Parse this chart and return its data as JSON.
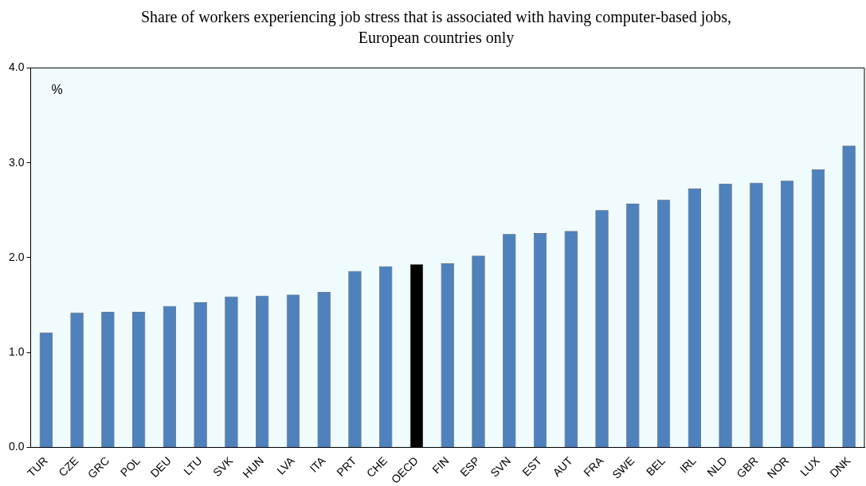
{
  "chart_data": {
    "type": "bar",
    "title": "Share of workers experiencing job stress that is associated with having computer-based jobs, European countries only",
    "categories": [
      "TUR",
      "CZE",
      "GRC",
      "POL",
      "DEU",
      "LTU",
      "SVK",
      "HUN",
      "LVA",
      "ITA",
      "PRT",
      "CHE",
      "OECD",
      "FIN",
      "ESP",
      "SVN",
      "EST",
      "AUT",
      "FRA",
      "SWE",
      "BEL",
      "IRL",
      "NLD",
      "GBR",
      "NOR",
      "LUX",
      "DNK"
    ],
    "values": [
      1.21,
      1.42,
      1.43,
      1.43,
      1.49,
      1.53,
      1.59,
      1.6,
      1.61,
      1.64,
      1.86,
      1.91,
      1.93,
      1.94,
      2.02,
      2.25,
      2.26,
      2.28,
      2.5,
      2.57,
      2.61,
      2.73,
      2.78,
      2.79,
      2.81,
      2.93,
      3.18
    ],
    "colors": [
      "#4f81bd",
      "#4f81bd",
      "#4f81bd",
      "#4f81bd",
      "#4f81bd",
      "#4f81bd",
      "#4f81bd",
      "#4f81bd",
      "#4f81bd",
      "#4f81bd",
      "#4f81bd",
      "#4f81bd",
      "#000000",
      "#4f81bd",
      "#4f81bd",
      "#4f81bd",
      "#4f81bd",
      "#4f81bd",
      "#4f81bd",
      "#4f81bd",
      "#4f81bd",
      "#4f81bd",
      "#4f81bd",
      "#4f81bd",
      "#4f81bd",
      "#4f81bd",
      "#4f81bd"
    ],
    "ylim": [
      0,
      4
    ],
    "yticks": [
      {
        "value": 0,
        "label": "0.0"
      },
      {
        "value": 1,
        "label": "1.0"
      },
      {
        "value": 2,
        "label": "2.0"
      },
      {
        "value": 3,
        "label": "3.0"
      },
      {
        "value": 4,
        "label": "4.0"
      }
    ],
    "annotations": [
      "%"
    ],
    "grid": false,
    "legend": false
  }
}
